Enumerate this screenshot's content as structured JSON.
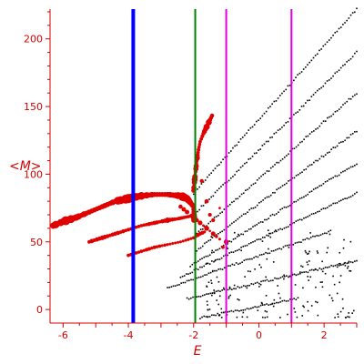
{
  "chart_data": {
    "type": "scatter",
    "title": "",
    "xlabel": "E",
    "ylabel": "<M>",
    "xlim": [
      -6.4,
      3.0
    ],
    "ylim": [
      -10,
      222
    ],
    "x_ticks": [
      -6,
      -4,
      -2,
      0,
      2
    ],
    "y_ticks": [
      0,
      50,
      100,
      150,
      200
    ],
    "grid": false,
    "legend": "none",
    "colors": {
      "axis": "#d40000",
      "ground_band": "#e00000",
      "scatter": "#000000",
      "line_blue": "#0000ff",
      "line_green": "#008000",
      "line_magenta": "#e000e0"
    },
    "vertical_lines": [
      {
        "x": -3.85,
        "color": "#0000ff",
        "width": 4
      },
      {
        "x": -1.95,
        "color": "#008000",
        "width": 2
      },
      {
        "x": -1.0,
        "color": "#e000e0",
        "width": 2
      },
      {
        "x": 1.0,
        "color": "#e000e0",
        "width": 2
      }
    ],
    "red_band_main": [
      [
        -6.3,
        62
      ],
      [
        -6.0,
        65
      ],
      [
        -5.6,
        68
      ],
      [
        -5.2,
        72
      ],
      [
        -4.8,
        76
      ],
      [
        -4.4,
        80
      ],
      [
        -4.0,
        82
      ],
      [
        -3.6,
        84
      ],
      [
        -3.2,
        85
      ],
      [
        -2.8,
        85
      ],
      [
        -2.4,
        84
      ],
      [
        -2.2,
        82
      ],
      [
        -2.1,
        79
      ],
      [
        -2.0,
        76
      ],
      [
        -1.98,
        70
      ],
      [
        -2.0,
        64
      ]
    ],
    "red_band_second": [
      [
        -5.2,
        50
      ],
      [
        -4.8,
        53
      ],
      [
        -4.4,
        56
      ],
      [
        -4.0,
        59
      ],
      [
        -3.6,
        62
      ],
      [
        -3.2,
        64
      ],
      [
        -2.8,
        66
      ],
      [
        -2.5,
        67
      ],
      [
        -2.3,
        68
      ],
      [
        -2.1,
        69
      ],
      [
        -2.0,
        70
      ]
    ],
    "red_band_third": [
      [
        -4.0,
        40
      ],
      [
        -3.6,
        43
      ],
      [
        -3.2,
        46
      ],
      [
        -2.8,
        48
      ],
      [
        -2.4,
        50
      ],
      [
        -2.0,
        53
      ],
      [
        -1.8,
        56
      ],
      [
        -1.6,
        58
      ]
    ],
    "red_upper_branch": [
      [
        -2.0,
        88
      ],
      [
        -1.95,
        100
      ],
      [
        -1.9,
        110
      ],
      [
        -1.85,
        118
      ],
      [
        -1.8,
        124
      ],
      [
        -1.7,
        130
      ],
      [
        -1.6,
        135
      ],
      [
        -1.5,
        140
      ],
      [
        -1.4,
        145
      ]
    ],
    "red_misc": [
      [
        -1.9,
        66
      ],
      [
        -1.8,
        64
      ],
      [
        -1.7,
        62
      ],
      [
        -1.6,
        60
      ],
      [
        -1.5,
        58
      ],
      [
        -1.4,
        56
      ],
      [
        -1.3,
        54
      ],
      [
        -1.2,
        52
      ],
      [
        -1.4,
        66
      ],
      [
        -1.5,
        70
      ],
      [
        -1.6,
        80
      ],
      [
        -1.2,
        75
      ],
      [
        -1.0,
        50
      ],
      [
        -1.1,
        46
      ],
      [
        -2.2,
        72
      ],
      [
        -2.3,
        74
      ],
      [
        -2.4,
        76
      ],
      [
        -1.75,
        95
      ]
    ],
    "black_branches": [
      {
        "x0": -2.0,
        "x1": 3.0,
        "y0": 86,
        "y1": 222
      },
      {
        "x0": -2.0,
        "x1": 3.0,
        "y0": 70,
        "y1": 190
      },
      {
        "x0": -1.9,
        "x1": 3.0,
        "y0": 56,
        "y1": 160
      },
      {
        "x0": -1.9,
        "x1": 3.0,
        "y0": 44,
        "y1": 132
      },
      {
        "x0": -2.1,
        "x1": 3.0,
        "y0": 32,
        "y1": 108
      },
      {
        "x0": -2.4,
        "x1": 3.0,
        "y0": 24,
        "y1": 86
      },
      {
        "x0": -2.8,
        "x1": 2.2,
        "y0": 16,
        "y1": 58
      },
      {
        "x0": -2.2,
        "x1": 3.0,
        "y0": 8,
        "y1": 36
      },
      {
        "x0": -1.8,
        "x1": 1.2,
        "y0": -6,
        "y1": 8
      }
    ],
    "black_cloud": {
      "xmin": -1.6,
      "xmax": 3.0,
      "ymin": -6,
      "ymax": 60,
      "count": 170
    }
  }
}
